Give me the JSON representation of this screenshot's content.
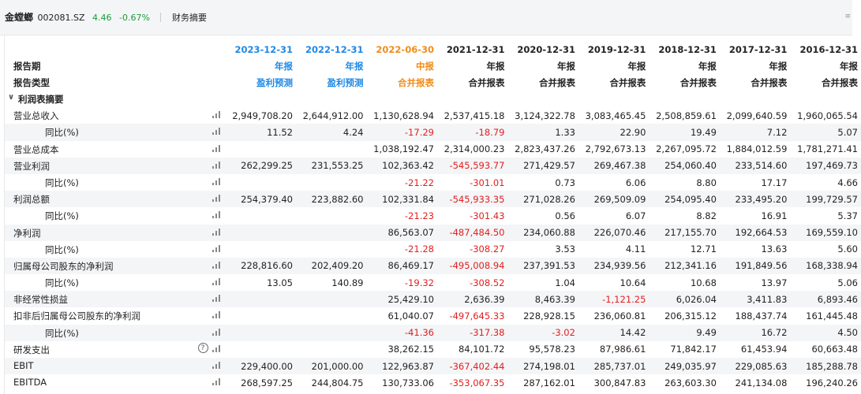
{
  "header": {
    "stock_name": "金螳螂",
    "stock_code": "002081.SZ",
    "price": "4.46",
    "change_pct": "-0.67%",
    "module": "财务摘要",
    "corner_icon": "menu-icon"
  },
  "table": {
    "label_period": "报告期",
    "label_type": "报告类型",
    "section_label": "利润表摘要",
    "columns": [
      {
        "date": "2023-12-31",
        "period": "年报",
        "type": "盈利预测",
        "color": "blue"
      },
      {
        "date": "2022-12-31",
        "period": "年报",
        "type": "盈利预测",
        "color": "blue"
      },
      {
        "date": "2022-06-30",
        "period": "中报",
        "type": "合并报表",
        "color": "orange"
      },
      {
        "date": "2021-12-31",
        "period": "年报",
        "type": "合并报表",
        "color": "normal"
      },
      {
        "date": "2020-12-31",
        "period": "年报",
        "type": "合并报表",
        "color": "normal"
      },
      {
        "date": "2019-12-31",
        "period": "年报",
        "type": "合并报表",
        "color": "normal"
      },
      {
        "date": "2018-12-31",
        "period": "年报",
        "type": "合并报表",
        "color": "normal"
      },
      {
        "date": "2017-12-31",
        "period": "年报",
        "type": "合并报表",
        "color": "normal"
      },
      {
        "date": "2016-12-31",
        "period": "年报",
        "type": "合并报表",
        "color": "normal"
      }
    ],
    "rows": [
      {
        "label": "营业总收入",
        "indent": false,
        "help": false,
        "values": [
          "2,949,708.20",
          "2,644,912.00",
          "1,130,628.94",
          "2,537,415.18",
          "3,124,322.78",
          "3,083,465.45",
          "2,508,859.61",
          "2,099,640.59",
          "1,960,065.54"
        ]
      },
      {
        "label": "同比(%)",
        "indent": true,
        "help": false,
        "values": [
          "11.52",
          "4.24",
          "-17.29",
          "-18.79",
          "1.33",
          "22.90",
          "19.49",
          "7.12",
          "5.07"
        ]
      },
      {
        "label": "营业总成本",
        "indent": false,
        "help": false,
        "values": [
          "",
          "",
          "1,038,192.47",
          "2,314,000.23",
          "2,823,437.26",
          "2,792,673.13",
          "2,267,095.72",
          "1,884,012.59",
          "1,781,271.41"
        ]
      },
      {
        "label": "营业利润",
        "indent": false,
        "help": false,
        "values": [
          "262,299.25",
          "231,553.25",
          "102,363.42",
          "-545,593.77",
          "271,429.57",
          "269,467.38",
          "254,060.40",
          "233,514.60",
          "197,469.73"
        ]
      },
      {
        "label": "同比(%)",
        "indent": true,
        "help": false,
        "values": [
          "",
          "",
          "-21.22",
          "-301.01",
          "0.73",
          "6.06",
          "8.80",
          "17.17",
          "4.66"
        ]
      },
      {
        "label": "利润总额",
        "indent": false,
        "help": false,
        "values": [
          "254,379.40",
          "223,882.60",
          "102,331.84",
          "-545,933.35",
          "271,028.26",
          "269,509.09",
          "254,095.40",
          "233,495.20",
          "199,729.57"
        ]
      },
      {
        "label": "同比(%)",
        "indent": true,
        "help": false,
        "values": [
          "",
          "",
          "-21.23",
          "-301.43",
          "0.56",
          "6.07",
          "8.82",
          "16.91",
          "5.37"
        ]
      },
      {
        "label": "净利润",
        "indent": false,
        "help": false,
        "values": [
          "",
          "",
          "86,563.07",
          "-487,484.50",
          "234,060.88",
          "226,070.46",
          "217,155.70",
          "192,664.53",
          "169,559.10"
        ]
      },
      {
        "label": "同比(%)",
        "indent": true,
        "help": false,
        "values": [
          "",
          "",
          "-21.28",
          "-308.27",
          "3.53",
          "4.11",
          "12.71",
          "13.63",
          "5.60"
        ]
      },
      {
        "label": "归属母公司股东的净利润",
        "indent": false,
        "help": false,
        "values": [
          "228,816.60",
          "202,409.20",
          "86,469.17",
          "-495,008.94",
          "237,391.53",
          "234,939.56",
          "212,341.16",
          "191,849.56",
          "168,338.94"
        ]
      },
      {
        "label": "同比(%)",
        "indent": true,
        "help": false,
        "values": [
          "13.05",
          "140.89",
          "-19.32",
          "-308.52",
          "1.04",
          "10.64",
          "10.68",
          "13.97",
          "5.06"
        ]
      },
      {
        "label": "非经常性损益",
        "indent": false,
        "help": false,
        "values": [
          "",
          "",
          "25,429.10",
          "2,636.39",
          "8,463.39",
          "-1,121.25",
          "6,026.04",
          "3,411.83",
          "6,893.46"
        ]
      },
      {
        "label": "扣非后归属母公司股东的净利润",
        "indent": false,
        "help": false,
        "values": [
          "",
          "",
          "61,040.07",
          "-497,645.33",
          "228,928.15",
          "236,060.81",
          "206,315.12",
          "188,437.74",
          "161,445.48"
        ]
      },
      {
        "label": "同比(%)",
        "indent": true,
        "help": false,
        "values": [
          "",
          "",
          "-41.36",
          "-317.38",
          "-3.02",
          "14.42",
          "9.49",
          "16.72",
          "4.50"
        ]
      },
      {
        "label": "研发支出",
        "indent": false,
        "help": true,
        "values": [
          "",
          "",
          "38,262.15",
          "84,101.72",
          "95,578.23",
          "87,986.61",
          "71,842.17",
          "61,453.94",
          "60,663.48"
        ]
      },
      {
        "label": "EBIT",
        "indent": false,
        "help": false,
        "values": [
          "229,400.00",
          "201,000.00",
          "122,963.87",
          "-367,402.44",
          "274,198.01",
          "285,737.01",
          "249,035.97",
          "229,085.63",
          "185,288.78"
        ]
      },
      {
        "label": "EBITDA",
        "indent": false,
        "help": false,
        "values": [
          "268,597.25",
          "244,804.75",
          "130,733.06",
          "-353,067.35",
          "287,162.01",
          "300,847.83",
          "263,603.30",
          "241,134.08",
          "196,240.26"
        ]
      }
    ]
  }
}
